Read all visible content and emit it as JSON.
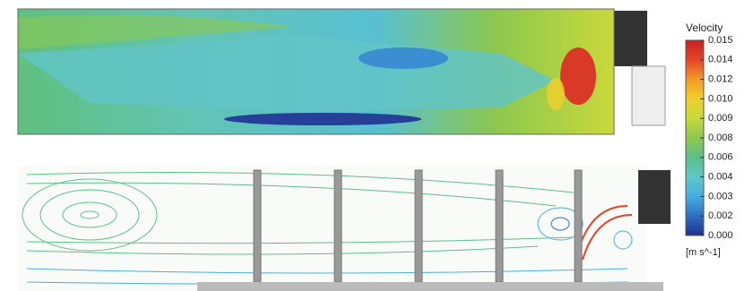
{
  "chart_data": {
    "type": "colorbar",
    "title": "Velocity",
    "unit_label": "[m s^-1]",
    "ylim": [
      0,
      0.015
    ],
    "yticks": [
      {
        "value": 0,
        "label": "0.000"
      },
      {
        "value": 0.0015,
        "label": "0.002"
      },
      {
        "value": 0.003,
        "label": "0.003"
      },
      {
        "value": 0.0045,
        "label": "0.004"
      },
      {
        "value": 0.006,
        "label": "0.006"
      },
      {
        "value": 0.0075,
        "label": "0.008"
      },
      {
        "value": 0.009,
        "label": "0.009"
      },
      {
        "value": 0.0105,
        "label": "0.010"
      },
      0.012,
      {
        "value": 0.0135,
        "label": "0.014"
      },
      0.015
    ],
    "colormap": [
      "#1f2f8f",
      "#2f6fc0",
      "#46aee0",
      "#5fc8c8",
      "#5cbf8a",
      "#8cc850",
      "#c9d83a",
      "#f0d02a",
      "#f39a25",
      "#e4452a",
      "#c8201f"
    ]
  }
}
